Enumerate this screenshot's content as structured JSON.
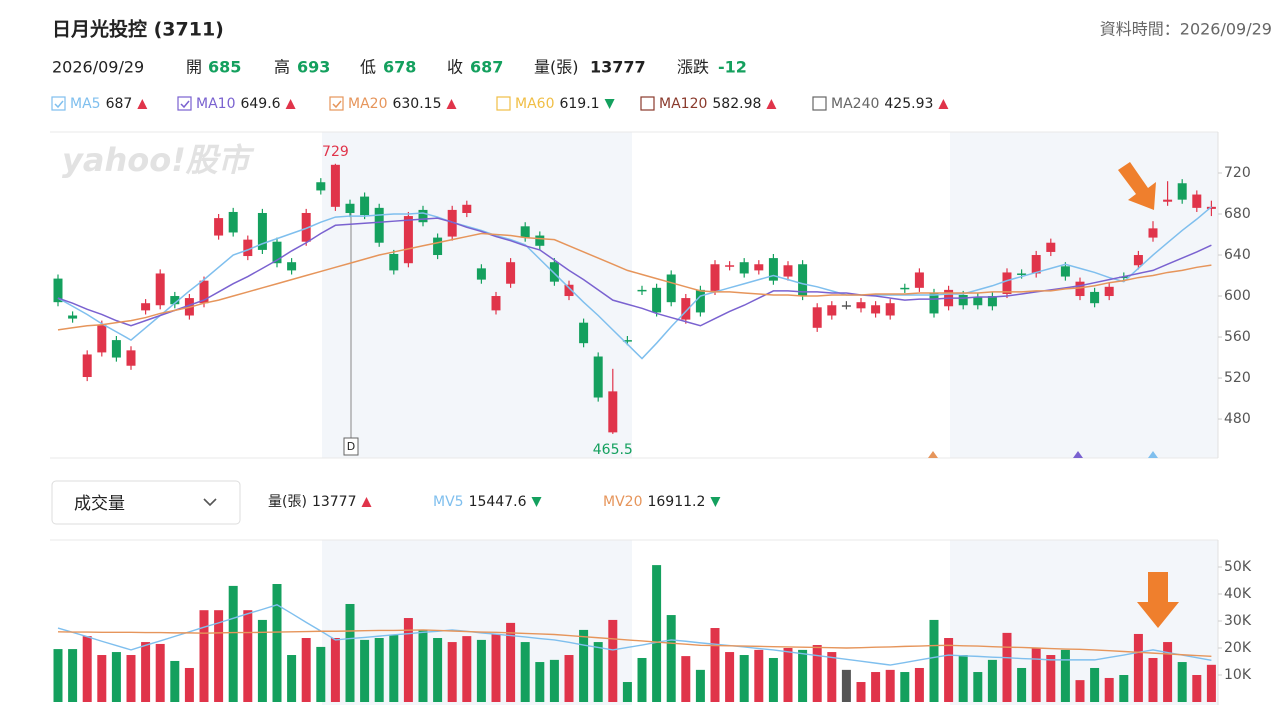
{
  "header": {
    "title": "日月光投控 (3711)",
    "data_time": "資料時間：2026/09/29",
    "date": "2026/09/29",
    "open_label": "開",
    "high_label": "高",
    "low_label": "低",
    "close_label": "收",
    "volume_label": "量(張)",
    "change_label": "漲跌",
    "change": -12
  },
  "chart_data": [
    {
      "type": "candlestick",
      "watermark": "yahoo!股市",
      "dividend_marker": "D",
      "ylim": [
        442,
        760
      ],
      "yticks": [
        480,
        520,
        560,
        600,
        640,
        680,
        720
      ],
      "grid": false,
      "up_color": "#e0344a",
      "down_color": "#14a05e",
      "flat_color": "#555555",
      "candles": {
        "open": [
          617,
          581,
          521,
          545,
          557,
          532,
          586,
          591,
          600,
          581,
          593,
          659,
          682,
          639,
          681,
          653,
          633,
          653,
          711,
          687,
          690,
          697,
          686,
          641,
          632,
          684,
          657,
          658,
          681,
          627,
          586,
          612,
          668,
          659,
          633,
          600,
          574,
          541,
          467,
          557,
          606,
          608,
          621,
          577,
          606,
          605,
          629,
          633,
          625,
          637,
          619,
          631,
          569,
          581,
          591,
          588,
          583,
          581,
          608,
          608,
          603,
          590,
          601,
          599,
          600,
          602,
          622,
          622,
          643,
          629,
          600,
          604,
          600,
          619,
          630,
          657,
          692,
          710,
          686,
          685
        ],
        "high": [
          621,
          585,
          547,
          576,
          561,
          551,
          597,
          626,
          604,
          602,
          619,
          680,
          686,
          659,
          685,
          657,
          637,
          685,
          715,
          729,
          694,
          701,
          690,
          645,
          682,
          688,
          661,
          688,
          693,
          631,
          604,
          637,
          672,
          663,
          637,
          615,
          578,
          545,
          529,
          561,
          610,
          612,
          625,
          602,
          610,
          635,
          634,
          637,
          635,
          641,
          634,
          635,
          593,
          595,
          595,
          598,
          595,
          597,
          612,
          627,
          607,
          610,
          605,
          603,
          604,
          627,
          626,
          644,
          656,
          633,
          618,
          608,
          613,
          623,
          644,
          673,
          712,
          714,
          703,
          693
        ],
        "low": [
          590,
          574,
          517,
          541,
          536,
          528,
          582,
          587,
          588,
          577,
          589,
          655,
          658,
          635,
          641,
          628,
          621,
          649,
          699,
          683,
          677,
          675,
          648,
          621,
          628,
          668,
          636,
          654,
          677,
          612,
          582,
          608,
          653,
          645,
          610,
          596,
          550,
          497,
          465.5,
          552,
          601,
          580,
          590,
          573,
          580,
          601,
          625,
          618,
          621,
          611,
          615,
          596,
          565,
          577,
          587,
          584,
          579,
          577,
          603,
          604,
          579,
          586,
          587,
          587,
          586,
          598,
          617,
          618,
          639,
          615,
          596,
          589,
          596,
          614,
          626,
          653,
          688,
          690,
          682,
          678
        ],
        "close": [
          594,
          578,
          543,
          572,
          540,
          547,
          593,
          622,
          592,
          598,
          615,
          676,
          662,
          655,
          645,
          632,
          625,
          681,
          703,
          728,
          681,
          679,
          652,
          625,
          678,
          672,
          640,
          684,
          689,
          616,
          600,
          633,
          657,
          649,
          614,
          611,
          554,
          501,
          507,
          556,
          605,
          584,
          594,
          598,
          584,
          631,
          630,
          622,
          631,
          615,
          630,
          600,
          589,
          591,
          591,
          594,
          591,
          593,
          607,
          623,
          583,
          606,
          591,
          591,
          590,
          623,
          621,
          640,
          652,
          619,
          614,
          593,
          609,
          618,
          640,
          666,
          694,
          694,
          699,
          687
        ]
      },
      "series": [
        {
          "name": "MA5",
          "color": "#7fbfee",
          "checked": true,
          "trend": "up",
          "values": [
            598,
            590,
            582,
            573,
            565,
            557,
            569,
            581,
            593,
            605,
            616,
            628,
            640,
            645,
            651,
            656,
            661,
            666,
            672,
            677,
            678,
            678,
            679,
            680,
            680,
            681,
            677,
            672,
            668,
            664,
            659,
            655,
            650,
            636,
            622,
            608,
            594,
            581,
            567,
            553,
            539,
            554,
            570,
            585,
            600,
            604,
            608,
            612,
            616,
            620,
            616,
            612,
            609,
            605,
            601,
            601,
            601,
            601,
            601,
            601,
            601,
            602,
            602,
            606,
            610,
            615,
            619,
            623,
            627,
            631,
            627,
            623,
            618,
            614,
            627,
            640,
            652,
            664,
            675,
            687
          ]
        },
        {
          "name": "MA10",
          "color": "#7a62d0",
          "checked": true,
          "trend": "up",
          "values": [
            598,
            593,
            587,
            582,
            576,
            571,
            576,
            581,
            586,
            591,
            596,
            604,
            612,
            619,
            627,
            635,
            644,
            652,
            661,
            669,
            670,
            671,
            672,
            673,
            674,
            675,
            676,
            672,
            667,
            663,
            658,
            654,
            649,
            645,
            635,
            625,
            616,
            606,
            596,
            592,
            588,
            583,
            579,
            575,
            571,
            578,
            585,
            591,
            598,
            605,
            605,
            604,
            604,
            603,
            603,
            601,
            600,
            598,
            596,
            597,
            597,
            598,
            598,
            599,
            599,
            600,
            602,
            604,
            606,
            608,
            610,
            613,
            616,
            619,
            622,
            625,
            631,
            637,
            643,
            649.6
          ]
        },
        {
          "name": "MA20",
          "color": "#e6955b",
          "checked": true,
          "trend": "up",
          "values": [
            567,
            569,
            571,
            572,
            574,
            576,
            579,
            583,
            586,
            589,
            593,
            596,
            600,
            604,
            608,
            612,
            616,
            620,
            624,
            628,
            632,
            636,
            640,
            643,
            646,
            649,
            652,
            655,
            658,
            661,
            660,
            659,
            657,
            656,
            655,
            649,
            643,
            637,
            631,
            625,
            621,
            617,
            613,
            609,
            605,
            604,
            604,
            603,
            602,
            601,
            601,
            600,
            600,
            601,
            601,
            601,
            602,
            602,
            602,
            603,
            603,
            603,
            603,
            603,
            604,
            604,
            604,
            605,
            605,
            607,
            608,
            610,
            613,
            615,
            618,
            620,
            623,
            625,
            628,
            630.15
          ]
        }
      ],
      "hidden_series": [
        {
          "name": "MA60",
          "color": "#f0be45",
          "checked": false,
          "trend": "down",
          "value": 619.1
        },
        {
          "name": "MA120",
          "color": "#8a3a2c",
          "checked": false,
          "trend": "up",
          "value": 582.98
        },
        {
          "name": "MA240",
          "color": "#666666",
          "checked": false,
          "trend": "up",
          "value": 425.93
        }
      ]
    },
    {
      "type": "bar",
      "selector": "成交量",
      "volume_label": "量(張)",
      "volume_trend": "up",
      "ylim": [
        0,
        60000
      ],
      "yticks": [
        {
          "value": 10000,
          "label": "10K"
        },
        {
          "value": 20000,
          "label": "20K"
        },
        {
          "value": 30000,
          "label": "30K"
        },
        {
          "value": 40000,
          "label": "40K"
        },
        {
          "value": 50000,
          "label": "50K"
        }
      ],
      "values": [
        19600,
        19600,
        24400,
        17400,
        18500,
        17400,
        22200,
        21500,
        15200,
        12600,
        34000,
        34000,
        43000,
        34000,
        30400,
        43700,
        17400,
        23700,
        20400,
        23700,
        36300,
        23000,
        23700,
        24800,
        31100,
        26700,
        23700,
        22200,
        24400,
        23000,
        25200,
        29300,
        22200,
        14800,
        15600,
        17400,
        26700,
        22200,
        30400,
        7400,
        16300,
        50700,
        32200,
        17000,
        11900,
        27400,
        18500,
        17400,
        19300,
        16300,
        20000,
        19300,
        21100,
        18500,
        11900,
        7400,
        11100,
        11900,
        11100,
        12600,
        30400,
        23700,
        17400,
        11100,
        15600,
        25600,
        12600,
        20000,
        17400,
        19300,
        8100,
        12600,
        8900,
        10000,
        25200,
        16300,
        22200,
        14800,
        10000,
        13777
      ],
      "series": [
        {
          "name": "MV5",
          "color": "#7fbfee",
          "trend": "down",
          "values": [
            27400,
            25800,
            24200,
            22500,
            20900,
            19300,
            21000,
            22600,
            24300,
            26000,
            27700,
            29300,
            31000,
            32700,
            34300,
            36000,
            32800,
            29500,
            26300,
            23000,
            23500,
            23900,
            24400,
            24900,
            25300,
            25800,
            26200,
            26700,
            26200,
            25600,
            25100,
            24600,
            24100,
            23500,
            23000,
            22100,
            21100,
            20200,
            19300,
            20200,
            21100,
            22100,
            23000,
            22500,
            21900,
            21400,
            20900,
            20400,
            19800,
            19300,
            18600,
            17900,
            17200,
            16500,
            15800,
            15100,
            14400,
            13700,
            14600,
            15600,
            16500,
            17400,
            17100,
            16900,
            16600,
            16400,
            16100,
            15900,
            15600,
            15600,
            15600,
            15600,
            16500,
            17400,
            18400,
            19300,
            18300,
            17400,
            16400,
            15447.6
          ]
        },
        {
          "name": "MV20",
          "color": "#e6955b",
          "trend": "down",
          "values": [
            26000,
            25900,
            25900,
            25800,
            25800,
            25800,
            25700,
            25700,
            25600,
            25600,
            25500,
            25600,
            25700,
            25700,
            25800,
            25900,
            26000,
            26100,
            26200,
            26200,
            26300,
            26400,
            26500,
            26500,
            26600,
            26700,
            26500,
            26300,
            26100,
            25900,
            25800,
            25600,
            25400,
            25200,
            25000,
            24600,
            24200,
            23800,
            23400,
            23000,
            22600,
            22200,
            21800,
            21400,
            21000,
            20900,
            20800,
            20700,
            20600,
            20500,
            20400,
            20300,
            20200,
            20100,
            20000,
            20100,
            20300,
            20400,
            20600,
            20700,
            20900,
            21000,
            20800,
            20700,
            20500,
            20300,
            20200,
            20000,
            19800,
            19600,
            19500,
            19300,
            19000,
            18700,
            18400,
            18100,
            17800,
            17500,
            17200,
            16911.2
          ]
        }
      ]
    }
  ]
}
